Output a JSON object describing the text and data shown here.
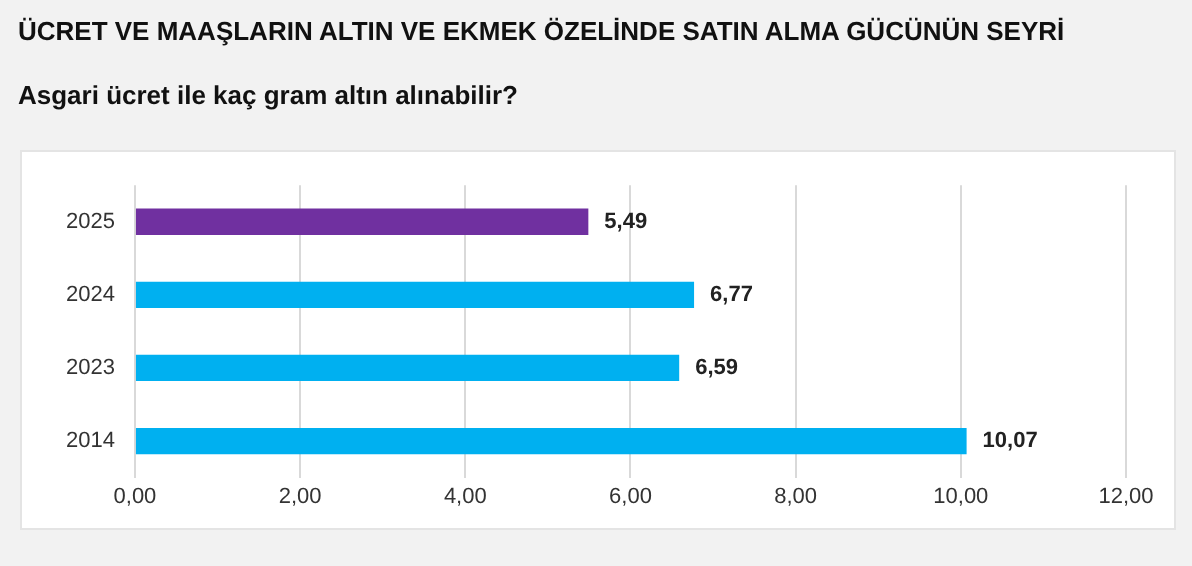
{
  "chart_data": {
    "type": "bar",
    "orientation": "horizontal",
    "title": "ÜCRET VE MAAŞLARIN ALTIN VE EKMEK ÖZELİNDE SATIN ALMA GÜCÜNÜN SEYRİ",
    "subtitle": "Asgari ücret ile kaç gram altın alınabilir?",
    "categories": [
      "2025",
      "2024",
      "2023",
      "2014"
    ],
    "values": [
      5.49,
      6.77,
      6.59,
      10.07
    ],
    "colors": [
      "#7030a0",
      "#00b0f0",
      "#00b0f0",
      "#00b0f0"
    ],
    "value_labels": [
      "5,49",
      "6,77",
      "6,59",
      "10,07"
    ],
    "xlim": [
      0,
      12
    ],
    "xticks": [
      {
        "value": 0,
        "label": "0,00"
      },
      {
        "value": 2,
        "label": "2,00"
      },
      {
        "value": 4,
        "label": "4,00"
      },
      {
        "value": 6,
        "label": "6,00"
      },
      {
        "value": 8,
        "label": "8,00"
      },
      {
        "value": 10,
        "label": "10,00"
      },
      {
        "value": 12,
        "label": "12,00"
      }
    ],
    "grid": "x",
    "legend": false
  }
}
